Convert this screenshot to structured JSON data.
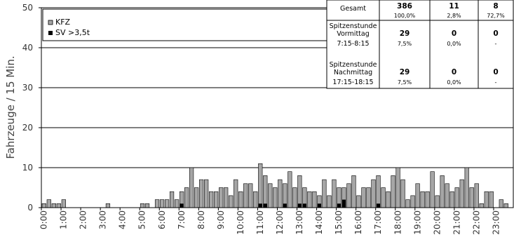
{
  "chart_data": {
    "type": "bar",
    "ylabel": "Fahrzeuge / 15 Min.",
    "ylim": [
      0,
      50
    ],
    "yticks": [
      0,
      10,
      20,
      30,
      40,
      50
    ],
    "grid": true,
    "legend_position": "top-left",
    "categories": [
      "0:00",
      "0:15",
      "0:30",
      "0:45",
      "1:00",
      "1:15",
      "1:30",
      "1:45",
      "2:00",
      "2:15",
      "2:30",
      "2:45",
      "3:00",
      "3:15",
      "3:30",
      "3:45",
      "4:00",
      "4:15",
      "4:30",
      "4:45",
      "5:00",
      "5:15",
      "5:30",
      "5:45",
      "6:00",
      "6:15",
      "6:30",
      "6:45",
      "7:00",
      "7:15",
      "7:30",
      "7:45",
      "8:00",
      "8:15",
      "8:30",
      "8:45",
      "9:00",
      "9:15",
      "9:30",
      "9:45",
      "10:00",
      "10:15",
      "10:30",
      "10:45",
      "11:00",
      "11:15",
      "11:30",
      "11:45",
      "12:00",
      "12:15",
      "12:30",
      "12:45",
      "13:00",
      "13:15",
      "13:30",
      "13:45",
      "14:00",
      "14:15",
      "14:30",
      "14:45",
      "15:00",
      "15:15",
      "15:30",
      "15:45",
      "16:00",
      "16:15",
      "16:30",
      "16:45",
      "17:00",
      "17:15",
      "17:30",
      "17:45",
      "18:00",
      "18:15",
      "18:30",
      "18:45",
      "19:00",
      "19:15",
      "19:30",
      "19:45",
      "20:00",
      "20:15",
      "20:30",
      "20:45",
      "21:00",
      "21:15",
      "21:30",
      "21:45",
      "22:00",
      "22:15",
      "22:30",
      "22:45",
      "23:00",
      "23:15",
      "23:30",
      "23:45"
    ],
    "xtick_labels": [
      "0:00",
      "1:00",
      "2:00",
      "3:00",
      "4:00",
      "5:00",
      "6:00",
      "7:00",
      "8:00",
      "9:00",
      "10:00",
      "11:00",
      "12:00",
      "13:00",
      "14:00",
      "15:00",
      "16:00",
      "17:00",
      "18:00",
      "19:00",
      "20:00",
      "21:00",
      "22:00",
      "23:00"
    ],
    "series": [
      {
        "name": "KFZ",
        "color": "#a6a6a6",
        "values": [
          1,
          2,
          1,
          1,
          2,
          0,
          0,
          0,
          0,
          0,
          0,
          0,
          0,
          1,
          0,
          0,
          0,
          0,
          0,
          0,
          1,
          1,
          0,
          2,
          2,
          2,
          4,
          2,
          4,
          5,
          10,
          5,
          7,
          7,
          4,
          4,
          5,
          5,
          3,
          7,
          4,
          6,
          6,
          4,
          11,
          8,
          6,
          5,
          7,
          6,
          9,
          5,
          8,
          5,
          4,
          4,
          3,
          7,
          3,
          7,
          5,
          5,
          6,
          8,
          3,
          5,
          5,
          7,
          8,
          5,
          4,
          8,
          10,
          7,
          2,
          3,
          6,
          4,
          4,
          9,
          3,
          8,
          6,
          4,
          5,
          7,
          10,
          5,
          6,
          1,
          4,
          4,
          0,
          2,
          1,
          0
        ]
      },
      {
        "name": "SV >3,5t",
        "color": "#000000",
        "values": [
          0,
          0,
          0,
          0,
          0,
          0,
          0,
          0,
          0,
          0,
          0,
          0,
          0,
          0,
          0,
          0,
          0,
          0,
          0,
          0,
          0,
          0,
          0,
          0,
          0,
          0,
          0,
          0,
          1,
          0,
          0,
          0,
          0,
          0,
          0,
          0,
          0,
          0,
          0,
          0,
          0,
          0,
          0,
          0,
          1,
          1,
          0,
          0,
          0,
          1,
          0,
          0,
          1,
          1,
          0,
          0,
          1,
          0,
          0,
          0,
          1,
          2,
          0,
          0,
          0,
          0,
          0,
          0,
          1,
          0,
          0,
          0,
          0,
          0,
          0,
          0,
          0,
          0,
          0,
          0,
          0,
          0,
          0,
          0,
          0,
          0,
          0,
          0,
          0,
          0,
          0,
          0,
          0,
          0,
          0,
          0
        ]
      }
    ]
  },
  "table": {
    "rows": [
      {
        "label_lines": [
          "Gesamt"
        ],
        "values": [
          {
            "main": "386",
            "sub": "100,0%"
          },
          {
            "main": "11",
            "sub": "2,8%"
          },
          {
            "main": "8",
            "sub": "72,7%"
          }
        ]
      },
      {
        "label_lines": [
          "Spitzenstunde",
          "Vormittag",
          "7:15-8:15"
        ],
        "values": [
          {
            "main": "29",
            "sub": "7,5%"
          },
          {
            "main": "0",
            "sub": "0,0%"
          },
          {
            "main": "0",
            "sub": "-"
          }
        ]
      },
      {
        "label_lines": [
          "Spitzenstunde",
          "Nachmittag",
          "17:15-18:15"
        ],
        "values": [
          {
            "main": "29",
            "sub": "7,5%"
          },
          {
            "main": "0",
            "sub": "0,0%"
          },
          {
            "main": "0",
            "sub": "-"
          }
        ]
      }
    ]
  }
}
